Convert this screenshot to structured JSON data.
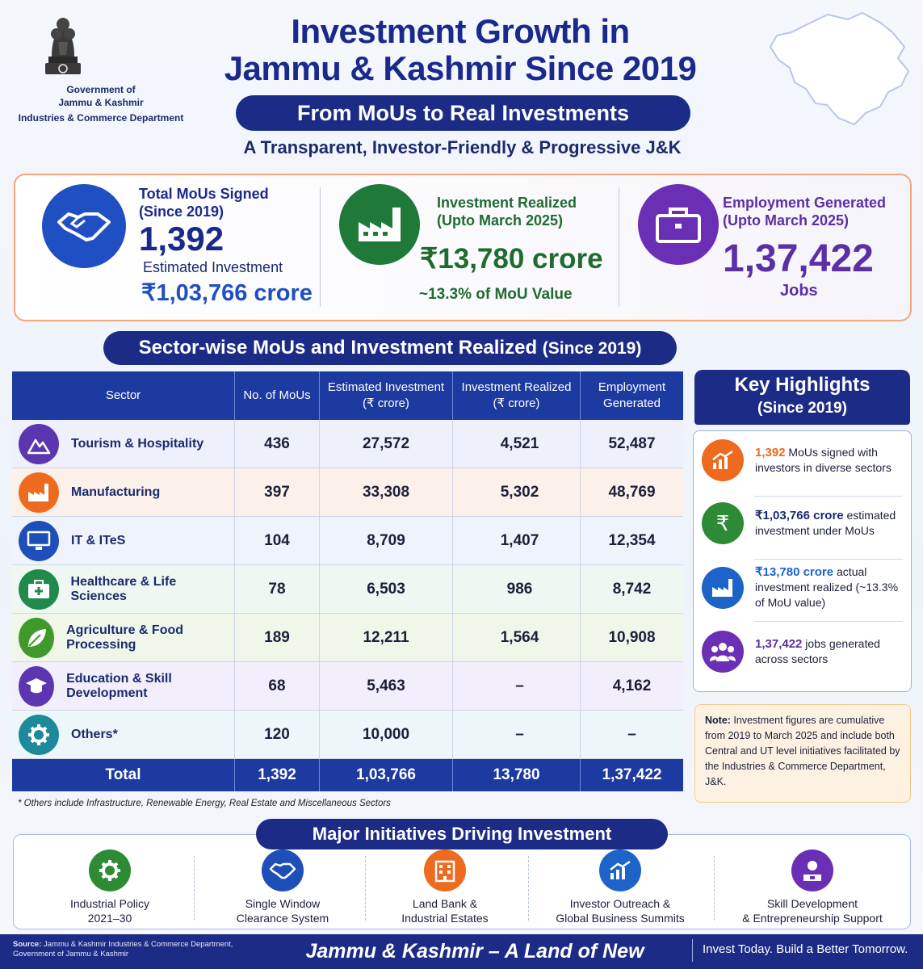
{
  "header": {
    "gov_line1": "Government of",
    "gov_line2": "Jammu & Kashmir",
    "gov_line3": "Industries & Commerce Department",
    "title_line1": "Investment Growth in",
    "title_line2": "Jammu & Kashmir Since 2019",
    "subtitle": "From MoUs to Real Investments",
    "tagline": "A Transparent, Investor-Friendly & Progressive J&K"
  },
  "stats": {
    "mous": {
      "label1": "Total MoUs Signed",
      "label2": "(Since 2019)",
      "value": "1,392",
      "sub_label": "Estimated Investment",
      "sub_value": "₹1,03,766 crore",
      "icon": "handshake-icon",
      "color": "#1f4fc2"
    },
    "investment": {
      "label1": "Investment Realized",
      "label2": "(Upto March 2025)",
      "value": "₹13,780 crore",
      "sub_value": "~13.3% of MoU Value",
      "icon": "factory-icon",
      "color": "#1f7a3a"
    },
    "employment": {
      "label1": "Employment Generated",
      "label2": "(Upto March 2025)",
      "value": "1,37,422",
      "sub_value": "Jobs",
      "icon": "briefcase-icon",
      "color": "#6b2fb5"
    }
  },
  "sector_section": {
    "title": "Sector-wise MoUs and Investment Realized",
    "title_suffix": "(Since 2019)"
  },
  "table": {
    "headers": [
      "Sector",
      "No. of MoUs",
      "Estimated Investment",
      "(₹ crore)",
      "Investment Realized",
      "(₹ crore)",
      "Employment",
      "Generated"
    ],
    "rows": [
      {
        "sector": "Tourism & Hospitality",
        "mous": "436",
        "estimated": "27,572",
        "realized": "4,521",
        "employment": "52,487",
        "icon": "mountain-icon",
        "icon_color": "#5b36b0",
        "bg": "#eef1fb"
      },
      {
        "sector": "Manufacturing",
        "mous": "397",
        "estimated": "33,308",
        "realized": "5,302",
        "employment": "48,769",
        "icon": "factory-icon",
        "icon_color": "#ee6a1f",
        "bg": "#fcf1ea"
      },
      {
        "sector": "IT & ITeS",
        "mous": "104",
        "estimated": "8,709",
        "realized": "1,407",
        "employment": "12,354",
        "icon": "monitor-icon",
        "icon_color": "#1e4fb8",
        "bg": "#eef3fc"
      },
      {
        "sector": "Healthcare & Life Sciences",
        "mous": "78",
        "estimated": "6,503",
        "realized": "986",
        "employment": "8,742",
        "icon": "medical-kit-icon",
        "icon_color": "#1f8a4a",
        "bg": "#eef7f1"
      },
      {
        "sector": "Agriculture & Food Processing",
        "mous": "189",
        "estimated": "12,211",
        "realized": "1,564",
        "employment": "10,908",
        "icon": "leaf-icon",
        "icon_color": "#3f9a2a",
        "bg": "#f0f7ea"
      },
      {
        "sector": "Education & Skill Development",
        "mous": "68",
        "estimated": "5,463",
        "realized": "–",
        "employment": "4,162",
        "icon": "graduation-cap-icon",
        "icon_color": "#5b36b0",
        "bg": "#f3eefb"
      },
      {
        "sector": "Others*",
        "mous": "120",
        "estimated": "10,000",
        "realized": "–",
        "employment": "–",
        "icon": "gear-icon",
        "icon_color": "#1c8a9a",
        "bg": "#edf6f8"
      }
    ],
    "total": {
      "label": "Total",
      "mous": "1,392",
      "estimated": "1,03,766",
      "realized": "13,780",
      "employment": "1,37,422"
    },
    "footnote": "* Others include Infrastructure, Renewable Energy, Real Estate and Miscellaneous Sectors"
  },
  "highlights": {
    "title": "Key Highlights",
    "subtitle": "(Since 2019)",
    "items": [
      {
        "strong": "1,392",
        "text": " MoUs signed with investors in diverse sectors",
        "icon": "growth-chart-icon",
        "color": "#ee6a1f"
      },
      {
        "strong": "₹1,03,766 crore",
        "text": " estimated investment under MoUs",
        "icon": "rupee-icon",
        "color": "#2e8b35"
      },
      {
        "strong": "₹13,780 crore",
        "text": " actual investment realized (~13.3% of MoU value)",
        "icon": "factory-icon",
        "color": "#1e64c8"
      },
      {
        "strong": "1,37,422",
        "text": " jobs generated across sectors",
        "icon": "people-icon",
        "color": "#6b2fb5"
      }
    ],
    "strong_colors": [
      "#ee6a1f",
      "#1a2a6c",
      "#1e64c8",
      "#5b2fa5"
    ],
    "note_label": "Note:",
    "note_text": " Investment figures are cumulative from 2019 to March 2025 and include both Central and UT level initiatives facilitated by the Industries & Commerce Department, J&K."
  },
  "initiatives": {
    "title": "Major Initiatives Driving Investment",
    "items": [
      {
        "line1": "Industrial Policy",
        "line2": "2021–30",
        "icon": "gear-icon",
        "color": "#2e8b35"
      },
      {
        "line1": "Single Window",
        "line2": "Clearance System",
        "icon": "handshake-icon",
        "color": "#1e4fb8"
      },
      {
        "line1": "Land Bank &",
        "line2": "Industrial Estates",
        "icon": "building-icon",
        "color": "#ee6a1f"
      },
      {
        "line1": "Investor Outreach &",
        "line2": "Global Business Summits",
        "icon": "growth-chart-icon",
        "color": "#1e64c8"
      },
      {
        "line1": "Skill Development",
        "line2": "& Entrepreneurship Support",
        "icon": "skill-icon",
        "color": "#6b2fb5"
      }
    ]
  },
  "footer": {
    "source_label": "Source:",
    "source_text": " Jammu & Kashmir Industries & Commerce Department, Government of Jammu & Kashmir",
    "slogan": "Jammu & Kashmir – A Land of New Opportunities",
    "cta": "Invest Today. Build a Better Tomorrow."
  }
}
